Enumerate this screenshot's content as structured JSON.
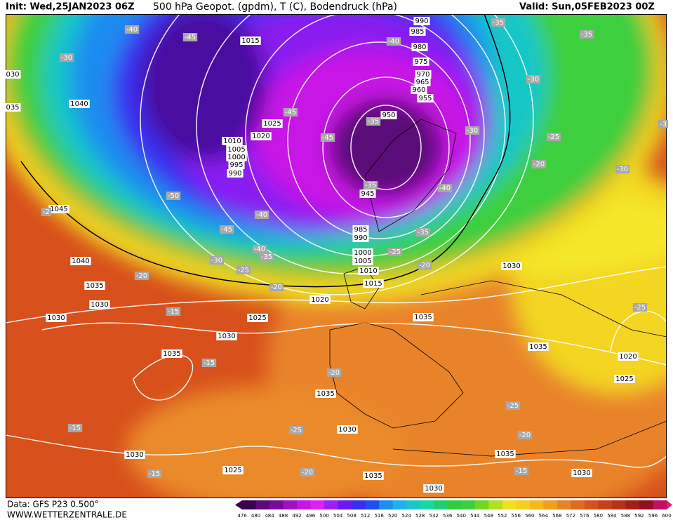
{
  "header": {
    "init": "Init: Wed,25JAN2023 06Z",
    "title": "500 hPa Geopot. (gpdm), T (C), Bodendruck (hPa)",
    "valid": "Valid: Sun,05FEB2023 00Z"
  },
  "footer": {
    "source": "Data: GFS P23 0.500°",
    "site": "WWW.WETTERZENTRALE.DE"
  },
  "legend": {
    "values": [
      476,
      480,
      484,
      488,
      492,
      496,
      500,
      504,
      508,
      512,
      516,
      520,
      524,
      528,
      532,
      536,
      540,
      544,
      548,
      552,
      556,
      560,
      564,
      568,
      572,
      576,
      580,
      584,
      588,
      592,
      596,
      600
    ]
  },
  "pressure_labels": [
    "1015",
    "1040",
    "1025",
    "1020",
    "1010",
    "1005",
    "1000",
    "995",
    "990",
    "1045",
    "1040",
    "1035",
    "1030",
    "1030",
    "1035",
    "1030",
    "1025",
    "1020",
    "1035",
    "1030",
    "1035",
    "1020",
    "1025",
    "1035",
    "1030",
    "1025",
    "1035",
    "1030",
    "1035",
    "1030",
    "1030",
    "950",
    "945",
    "955",
    "960",
    "965",
    "970",
    "975",
    "980",
    "985",
    "990",
    "1000",
    "1005",
    "1010",
    "1015",
    "030",
    "035",
    "985",
    "990"
  ],
  "temperature_labels": [
    "-40",
    "-45",
    "-30",
    "-40",
    "-35",
    "-35",
    "-30",
    "-45",
    "-35",
    "-45",
    "-30",
    "-25",
    "-20",
    "-30",
    "-3",
    "-50",
    "-35",
    "-40",
    "-40",
    "-45",
    "-2",
    "-40",
    "-35",
    "-30",
    "-25",
    "-25",
    "-35",
    "-20",
    "-20",
    "-20",
    "-15",
    "-15",
    "-20",
    "-25",
    "-25",
    "-20",
    "-25",
    "-15",
    "-15",
    "-20",
    "-15"
  ]
}
